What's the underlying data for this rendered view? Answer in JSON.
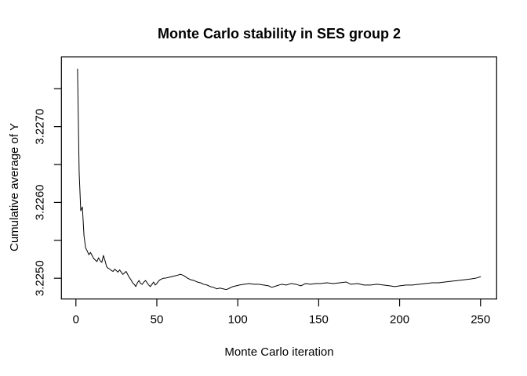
{
  "chart_data": {
    "type": "line",
    "title": "Monte Carlo stability in SES group 2",
    "xlabel": "Monte Carlo iteration",
    "ylabel": "Cumulative average of Y",
    "x_ticks": [
      0,
      50,
      100,
      150,
      200,
      250
    ],
    "x_tick_labels": [
      "0",
      "50",
      "100",
      "150",
      "200",
      "250"
    ],
    "y_tick_values": [
      3.225,
      3.2255,
      3.226,
      3.2265,
      3.227,
      3.2275
    ],
    "y_tick_labels": [
      "3.2250",
      "",
      "3.2260",
      "",
      "3.2270",
      ""
    ],
    "xlim": [
      -8.96,
      259.96
    ],
    "ylim": [
      3.224726,
      3.227919
    ],
    "grid": false,
    "legend": false,
    "background_color": "#ffffff",
    "line_color": "#000000",
    "axis_color": "#000000",
    "series": [
      {
        "name": "cumulative-average-of-Y",
        "points": [
          [
            1,
            3.22776
          ],
          [
            2,
            3.2264
          ],
          [
            3,
            3.22589
          ],
          [
            4,
            3.22594
          ],
          [
            5,
            3.22556
          ],
          [
            6,
            3.2254
          ],
          [
            7,
            3.22536
          ],
          [
            8,
            3.22531
          ],
          [
            9,
            3.22534
          ],
          [
            10,
            3.2253
          ],
          [
            11,
            3.22526
          ],
          [
            12,
            3.22524
          ],
          [
            13,
            3.22522
          ],
          [
            14,
            3.22527
          ],
          [
            15,
            3.22523
          ],
          [
            16,
            3.22521
          ],
          [
            17,
            3.2253
          ],
          [
            18,
            3.22523
          ],
          [
            19,
            3.22515
          ],
          [
            20,
            3.22513
          ],
          [
            21,
            3.22512
          ],
          [
            22,
            3.2251
          ],
          [
            23,
            3.22509
          ],
          [
            24,
            3.22512
          ],
          [
            25,
            3.2251
          ],
          [
            26,
            3.22508
          ],
          [
            27,
            3.22511
          ],
          [
            28,
            3.22508
          ],
          [
            29,
            3.22505
          ],
          [
            30,
            3.22507
          ],
          [
            31,
            3.22509
          ],
          [
            32,
            3.22505
          ],
          [
            33,
            3.22501
          ],
          [
            34,
            3.22498
          ],
          [
            35,
            3.22494
          ],
          [
            36,
            3.22492
          ],
          [
            37,
            3.22489
          ],
          [
            38,
            3.22494
          ],
          [
            39,
            3.22497
          ],
          [
            40,
            3.22493
          ],
          [
            41,
            3.22492
          ],
          [
            42,
            3.22495
          ],
          [
            43,
            3.22497
          ],
          [
            44,
            3.22494
          ],
          [
            45,
            3.22491
          ],
          [
            46,
            3.22489
          ],
          [
            47,
            3.22492
          ],
          [
            48,
            3.22495
          ],
          [
            49,
            3.22491
          ],
          [
            50,
            3.22493
          ],
          [
            51,
            3.22496
          ],
          [
            52,
            3.22498
          ],
          [
            53,
            3.22499
          ],
          [
            54,
            3.225
          ],
          [
            55,
            3.225
          ],
          [
            57,
            3.22501
          ],
          [
            59,
            3.22502
          ],
          [
            61,
            3.22503
          ],
          [
            63,
            3.22504
          ],
          [
            64,
            3.22505
          ],
          [
            65,
            3.22505
          ],
          [
            67,
            3.22503
          ],
          [
            69,
            3.225
          ],
          [
            71,
            3.22498
          ],
          [
            73,
            3.22497
          ],
          [
            75,
            3.22495
          ],
          [
            77,
            3.22494
          ],
          [
            79,
            3.22492
          ],
          [
            81,
            3.22491
          ],
          [
            83,
            3.22489
          ],
          [
            85,
            3.22488
          ],
          [
            87,
            3.22486
          ],
          [
            89,
            3.22487
          ],
          [
            91,
            3.22486
          ],
          [
            93,
            3.22485
          ],
          [
            95,
            3.22487
          ],
          [
            97,
            3.22489
          ],
          [
            99,
            3.2249
          ],
          [
            101,
            3.22491
          ],
          [
            104,
            3.22492
          ],
          [
            107,
            3.22493
          ],
          [
            110,
            3.22492
          ],
          [
            113,
            3.22492
          ],
          [
            116,
            3.22491
          ],
          [
            119,
            3.2249
          ],
          [
            121,
            3.22488
          ],
          [
            124,
            3.2249
          ],
          [
            127,
            3.22492
          ],
          [
            130,
            3.22491
          ],
          [
            133,
            3.22493
          ],
          [
            136,
            3.22492
          ],
          [
            139,
            3.2249
          ],
          [
            142,
            3.22493
          ],
          [
            145,
            3.22492
          ],
          [
            148,
            3.22493
          ],
          [
            151,
            3.22493
          ],
          [
            155,
            3.22494
          ],
          [
            159,
            3.22493
          ],
          [
            163,
            3.22494
          ],
          [
            167,
            3.22495
          ],
          [
            170,
            3.22492
          ],
          [
            174,
            3.22493
          ],
          [
            178,
            3.22491
          ],
          [
            182,
            3.22491
          ],
          [
            186,
            3.22492
          ],
          [
            190,
            3.22491
          ],
          [
            194,
            3.2249
          ],
          [
            197,
            3.22489
          ],
          [
            200,
            3.2249
          ],
          [
            204,
            3.22491
          ],
          [
            208,
            3.22491
          ],
          [
            212,
            3.22492
          ],
          [
            216,
            3.22493
          ],
          [
            220,
            3.22494
          ],
          [
            224,
            3.22494
          ],
          [
            228,
            3.22495
          ],
          [
            232,
            3.22496
          ],
          [
            236,
            3.22497
          ],
          [
            240,
            3.22498
          ],
          [
            244,
            3.22499
          ],
          [
            247,
            3.225
          ],
          [
            250,
            3.22502
          ]
        ]
      }
    ]
  }
}
